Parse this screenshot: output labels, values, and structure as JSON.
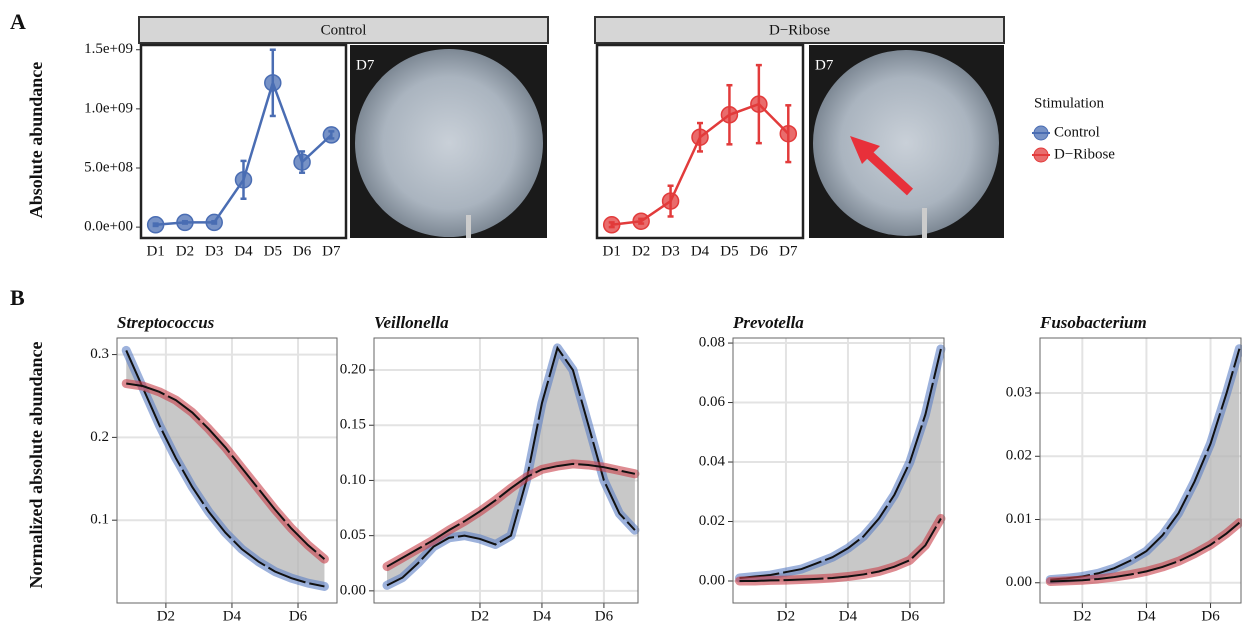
{
  "figure": {
    "panel_labels": [
      "A",
      "B"
    ],
    "y_labels": [
      "Absolute abundance",
      "Normalized absolute abundance"
    ],
    "legend_title": "Stimulation"
  },
  "chart_data": [
    {
      "type": "line",
      "title": "Control",
      "photo_label": "D7",
      "categories": [
        "D1",
        "D2",
        "D3",
        "D4",
        "D5",
        "D6",
        "D7"
      ],
      "series": [
        {
          "name": "Control",
          "color": "#4a6db3",
          "values": [
            20000000,
            40000000,
            40000000,
            400000000,
            1220000000,
            550000000,
            780000000
          ],
          "errors": [
            10000000,
            10000000,
            10000000,
            160000000,
            280000000,
            90000000,
            30000000
          ]
        }
      ],
      "ylim": [
        -92000000,
        1540000000
      ],
      "yticks": [
        {
          "value": 0,
          "label": "0.0e+00"
        },
        {
          "value": 500000000,
          "label": "5.0e+08"
        },
        {
          "value": 1000000000,
          "label": "1.0e+09"
        },
        {
          "value": 1500000000,
          "label": "1.5e+09"
        }
      ]
    },
    {
      "type": "line",
      "title": "D−Ribose",
      "photo_label": "D7",
      "categories": [
        "D1",
        "D2",
        "D3",
        "D4",
        "D5",
        "D6",
        "D7"
      ],
      "series": [
        {
          "name": "D−Ribose",
          "color": "#e23b3b",
          "values": [
            20000000,
            50000000,
            220000000,
            760000000,
            950000000,
            1040000000,
            790000000
          ],
          "errors": [
            20000000,
            20000000,
            130000000,
            120000000,
            250000000,
            330000000,
            240000000
          ]
        }
      ],
      "ylim": [
        -92000000,
        1540000000
      ]
    },
    {
      "type": "curve",
      "title": "Streptococcus",
      "grid": true,
      "x": [
        0.8,
        1.3,
        1.8,
        2.3,
        2.8,
        3.3,
        3.8,
        4.3,
        4.8,
        5.3,
        5.8,
        6.3,
        6.8
      ],
      "series": [
        {
          "color": "#5b7fc4",
          "values": [
            0.305,
            0.26,
            0.215,
            0.175,
            0.14,
            0.11,
            0.085,
            0.065,
            0.05,
            0.038,
            0.03,
            0.024,
            0.02
          ]
        },
        {
          "color": "#c8404a",
          "values": [
            0.265,
            0.262,
            0.255,
            0.245,
            0.23,
            0.21,
            0.188,
            0.163,
            0.138,
            0.113,
            0.09,
            0.07,
            0.053
          ]
        }
      ],
      "xlim": [
        0.52,
        7.18
      ],
      "xticks": [
        {
          "value": 2,
          "label": "D2"
        },
        {
          "value": 4,
          "label": "D4"
        },
        {
          "value": 6,
          "label": "D6"
        }
      ],
      "ylim": [
        0,
        0.32
      ],
      "yticks": [
        0.1,
        0.2,
        0.3
      ]
    },
    {
      "type": "curve",
      "title": "Veillonella",
      "grid": true,
      "x": [
        -1,
        -0.5,
        0,
        0.5,
        1,
        1.5,
        2,
        2.5,
        3,
        3.5,
        4,
        4.5,
        5,
        5.5,
        6,
        6.5,
        7
      ],
      "series": [
        {
          "color": "#5b7fc4",
          "values": [
            0.005,
            0.012,
            0.025,
            0.04,
            0.048,
            0.05,
            0.047,
            0.042,
            0.05,
            0.1,
            0.17,
            0.22,
            0.2,
            0.15,
            0.1,
            0.07,
            0.055
          ]
        },
        {
          "color": "#c8404a",
          "values": [
            0.022,
            0.03,
            0.038,
            0.046,
            0.055,
            0.063,
            0.072,
            0.082,
            0.093,
            0.103,
            0.11,
            0.113,
            0.115,
            0.114,
            0.112,
            0.109,
            0.106
          ]
        }
      ],
      "xlim": [
        -1.42,
        7.1
      ],
      "xticks": [
        {
          "value": 2,
          "label": "D2"
        },
        {
          "value": 4,
          "label": "D4"
        },
        {
          "value": 6,
          "label": "D6"
        }
      ],
      "ylim": [
        -0.011,
        0.229
      ],
      "yticks": [
        {
          "value": 0,
          "label": "0.00"
        },
        0.05,
        {
          "value": 0.1,
          "label": "0.10"
        },
        0.15,
        {
          "value": 0.2,
          "label": "0.20"
        }
      ]
    },
    {
      "type": "curve",
      "title": "Prevotella",
      "grid": true,
      "x": [
        0.5,
        1,
        1.5,
        2,
        2.5,
        3,
        3.5,
        4,
        4.5,
        5,
        5.5,
        6,
        6.5,
        7
      ],
      "series": [
        {
          "color": "#5b7fc4",
          "values": [
            0.001,
            0.0015,
            0.002,
            0.003,
            0.004,
            0.006,
            0.008,
            0.011,
            0.015,
            0.021,
            0.029,
            0.04,
            0.056,
            0.078
          ]
        },
        {
          "color": "#c8404a",
          "values": [
            0,
            0,
            0.0002,
            0.0003,
            0.0005,
            0.0007,
            0.001,
            0.0015,
            0.0022,
            0.0032,
            0.0048,
            0.007,
            0.012,
            0.021
          ]
        }
      ],
      "xlim": [
        0.29,
        7.1
      ],
      "xticks": [
        {
          "value": 2,
          "label": "D2"
        },
        {
          "value": 4,
          "label": "D4"
        },
        {
          "value": 6,
          "label": "D6"
        }
      ],
      "ylim": [
        -0.0074,
        0.0817
      ],
      "yticks": [
        {
          "value": 0,
          "label": "0.00"
        },
        0.02,
        0.04,
        0.06,
        {
          "value": 0.08,
          "label": "0.08"
        }
      ]
    },
    {
      "type": "curve",
      "title": "Fusobacterium",
      "grid": true,
      "x": [
        1,
        1.5,
        2,
        2.5,
        3,
        3.5,
        4,
        4.5,
        5,
        5.5,
        6,
        6.5,
        6.9
      ],
      "series": [
        {
          "color": "#5b7fc4",
          "values": [
            0.0005,
            0.0007,
            0.001,
            0.0015,
            0.0023,
            0.0035,
            0.005,
            0.0075,
            0.011,
            0.016,
            0.022,
            0.03,
            0.037
          ]
        },
        {
          "color": "#c8404a",
          "values": [
            0.0002,
            0.0003,
            0.0004,
            0.0006,
            0.0009,
            0.0013,
            0.0018,
            0.0025,
            0.0034,
            0.0046,
            0.006,
            0.0078,
            0.0095
          ]
        }
      ],
      "xlim": [
        0.68,
        6.95
      ],
      "xticks": [
        {
          "value": 2,
          "label": "D2"
        },
        {
          "value": 4,
          "label": "D4"
        },
        {
          "value": 6,
          "label": "D6"
        }
      ],
      "ylim": [
        -0.0032,
        0.0387
      ],
      "yticks": [
        {
          "value": 0,
          "label": "0.00"
        },
        0.01,
        0.02,
        0.03
      ]
    }
  ]
}
